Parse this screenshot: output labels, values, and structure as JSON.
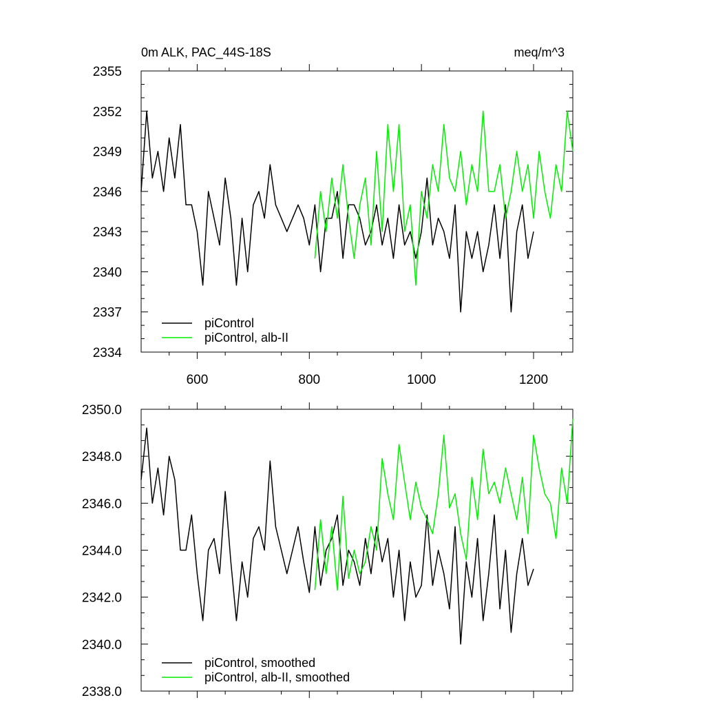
{
  "figure": {
    "title_left": "0m ALK, PAC_44S-18S",
    "title_right": "meq/m^3"
  },
  "colors": {
    "piControl": "#000000",
    "albII": "#00ee00",
    "axis": "#000000"
  },
  "chart_data": [
    {
      "type": "line",
      "panel": "top",
      "xlim": [
        500,
        1270
      ],
      "ylim": [
        2334,
        2355
      ],
      "xticks": [
        600,
        800,
        1000,
        1200
      ],
      "xtick_labels": [
        "600",
        "800",
        "1000",
        "1200"
      ],
      "yticks": [
        2334,
        2337,
        2340,
        2343,
        2346,
        2349,
        2352,
        2355
      ],
      "ytick_labels": [
        "2334",
        "2337",
        "2340",
        "2343",
        "2346",
        "2349",
        "2352",
        "2355"
      ],
      "legend_position": "bottom-left",
      "series": [
        {
          "name": "piControl",
          "legend_label": "piControl",
          "color_key": "piControl",
          "x": [
            500,
            510,
            520,
            530,
            540,
            550,
            560,
            570,
            580,
            590,
            600,
            610,
            620,
            630,
            640,
            650,
            660,
            670,
            680,
            690,
            700,
            710,
            720,
            730,
            740,
            750,
            760,
            770,
            780,
            790,
            800,
            810,
            820,
            830,
            840,
            850,
            860,
            870,
            880,
            890,
            900,
            910,
            920,
            930,
            940,
            950,
            960,
            970,
            980,
            990,
            1000,
            1010,
            1020,
            1030,
            1040,
            1050,
            1060,
            1070,
            1080,
            1090,
            1100,
            1110,
            1120,
            1130,
            1140,
            1150,
            1160,
            1170,
            1180,
            1190,
            1200
          ],
          "y": [
            2346,
            2352,
            2347,
            2349,
            2346,
            2350,
            2347,
            2351,
            2345,
            2345,
            2343,
            2339,
            2346,
            2344,
            2342,
            2347,
            2344,
            2339,
            2344,
            2340,
            2345,
            2346,
            2344,
            2348,
            2345,
            2344,
            2343,
            2344,
            2345,
            2344,
            2342,
            2345,
            2340,
            2344,
            2344,
            2346,
            2341,
            2345,
            2345,
            2344,
            2342,
            2343,
            2345,
            2342,
            2344,
            2341,
            2345,
            2342,
            2343,
            2341,
            2343,
            2347,
            2342,
            2344,
            2343,
            2341,
            2345,
            2337,
            2343,
            2341,
            2343,
            2340,
            2342,
            2345,
            2341,
            2345,
            2337,
            2343,
            2345,
            2341,
            2343
          ]
        },
        {
          "name": "piControl, alb-II",
          "legend_label": "piControl, alb-II",
          "color_key": "albII",
          "x": [
            810,
            820,
            830,
            840,
            850,
            860,
            870,
            880,
            890,
            900,
            910,
            920,
            930,
            940,
            950,
            960,
            970,
            980,
            990,
            1000,
            1010,
            1020,
            1030,
            1040,
            1050,
            1060,
            1070,
            1080,
            1090,
            1100,
            1110,
            1120,
            1130,
            1140,
            1150,
            1160,
            1170,
            1180,
            1190,
            1200,
            1210,
            1220,
            1230,
            1240,
            1250,
            1260,
            1270
          ],
          "y": [
            2341,
            2346,
            2343,
            2347,
            2344,
            2348,
            2344,
            2341,
            2345,
            2347,
            2342,
            2349,
            2343,
            2351,
            2346,
            2351,
            2343,
            2345,
            2339,
            2346,
            2344,
            2348,
            2346,
            2351,
            2347,
            2346,
            2349,
            2345,
            2348,
            2346,
            2352,
            2346,
            2346,
            2348,
            2344,
            2346,
            2349,
            2346,
            2348,
            2344,
            2349,
            2346,
            2344,
            2348,
            2346,
            2352,
            2349
          ]
        }
      ]
    },
    {
      "type": "line",
      "panel": "bottom",
      "xlim": [
        500,
        1270
      ],
      "ylim": [
        2338.0,
        2350.0
      ],
      "xticks": [
        600,
        800,
        1000,
        1200
      ],
      "xtick_labels": [],
      "yticks": [
        2338,
        2340,
        2342,
        2344,
        2346,
        2348,
        2350
      ],
      "ytick_labels": [
        "2338.0",
        "2340.0",
        "2342.0",
        "2344.0",
        "2346.0",
        "2348.0",
        "2350.0"
      ],
      "legend_position": "bottom-left",
      "series": [
        {
          "name": "piControl, smoothed",
          "legend_label": "piControl, smoothed",
          "color_key": "piControl",
          "x": [
            500,
            510,
            520,
            530,
            540,
            550,
            560,
            570,
            580,
            590,
            600,
            610,
            620,
            630,
            640,
            650,
            660,
            670,
            680,
            690,
            700,
            710,
            720,
            730,
            740,
            750,
            760,
            770,
            780,
            790,
            800,
            810,
            820,
            830,
            840,
            850,
            860,
            870,
            880,
            890,
            900,
            910,
            920,
            930,
            940,
            950,
            960,
            970,
            980,
            990,
            1000,
            1010,
            1020,
            1030,
            1040,
            1050,
            1060,
            1070,
            1080,
            1090,
            1100,
            1110,
            1120,
            1130,
            1140,
            1150,
            1160,
            1170,
            1180,
            1190,
            1200
          ],
          "y": [
            2347,
            2349.2,
            2346,
            2347.5,
            2345.5,
            2348,
            2347,
            2344,
            2344,
            2345.5,
            2343,
            2341,
            2344,
            2344.5,
            2343,
            2346.5,
            2343.5,
            2341,
            2343.5,
            2342,
            2344.5,
            2345,
            2344,
            2347.8,
            2345,
            2344,
            2343,
            2344,
            2345,
            2343.5,
            2342.2,
            2345,
            2342.5,
            2344,
            2344.5,
            2345.5,
            2342.5,
            2344,
            2343.5,
            2342.5,
            2344.5,
            2343,
            2345,
            2343.5,
            2344.5,
            2342,
            2344,
            2341,
            2343.5,
            2342,
            2342.5,
            2345.5,
            2342.5,
            2344,
            2343,
            2341.5,
            2345,
            2340,
            2343.5,
            2342,
            2344.5,
            2341,
            2343,
            2345.5,
            2341.5,
            2344,
            2340.5,
            2343,
            2344.5,
            2342.5,
            2343.2
          ]
        },
        {
          "name": "piControl, alb-II, smoothed",
          "legend_label": "piControl, alb-II, smoothed",
          "color_key": "albII",
          "x": [
            810,
            820,
            830,
            840,
            850,
            860,
            870,
            880,
            890,
            900,
            910,
            920,
            930,
            940,
            950,
            960,
            970,
            980,
            990,
            1000,
            1010,
            1020,
            1030,
            1040,
            1050,
            1060,
            1070,
            1080,
            1090,
            1100,
            1110,
            1120,
            1130,
            1140,
            1150,
            1160,
            1170,
            1180,
            1190,
            1200,
            1210,
            1220,
            1230,
            1240,
            1250,
            1260,
            1270
          ],
          "y": [
            2342.3,
            2345.3,
            2343,
            2345,
            2342.3,
            2346.3,
            2342.8,
            2344,
            2343,
            2343.5,
            2345,
            2344,
            2347.9,
            2346.4,
            2345.3,
            2348.5,
            2346.9,
            2345.3,
            2346.9,
            2345.8,
            2345.3,
            2344.7,
            2346.4,
            2348.9,
            2345.8,
            2346.4,
            2344.7,
            2343.6,
            2347.1,
            2345.3,
            2348.3,
            2346.4,
            2346.9,
            2346,
            2347.5,
            2346.4,
            2345.3,
            2347.1,
            2344.7,
            2348.9,
            2347.5,
            2346.4,
            2346,
            2344.5,
            2347.5,
            2346,
            2349.6
          ]
        }
      ]
    }
  ]
}
